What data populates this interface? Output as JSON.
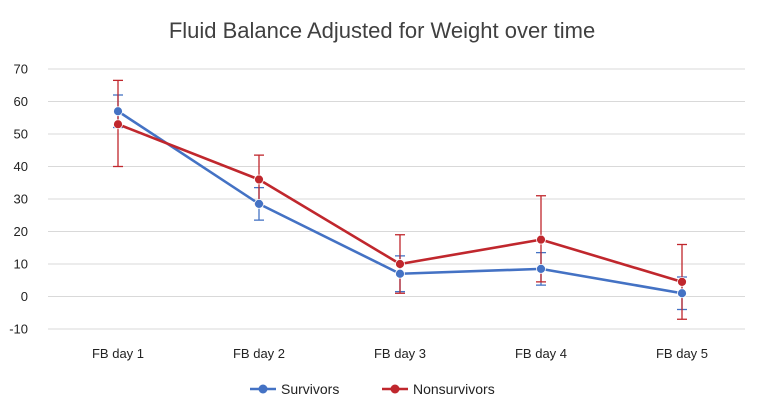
{
  "chart_data": {
    "type": "line",
    "title": "Fluid Balance Adjusted for Weight over time",
    "xlabel": "",
    "ylabel": "",
    "categories": [
      "FB day 1",
      "FB day 2",
      "FB day 3",
      "FB day 4",
      "FB day 5"
    ],
    "ylim": [
      -10,
      70
    ],
    "yticks": [
      -10,
      0,
      10,
      20,
      30,
      40,
      50,
      60,
      70
    ],
    "grid": true,
    "legend_position": "bottom",
    "series": [
      {
        "name": "Survivors",
        "color": "#4472C4",
        "values": [
          57,
          28.5,
          7,
          8.5,
          1
        ],
        "error_low": [
          52,
          23.5,
          1.5,
          3.5,
          -4
        ],
        "error_high": [
          62,
          33.5,
          12.5,
          13.5,
          6
        ]
      },
      {
        "name": "Nonsurvivors",
        "color": "#C0272D",
        "values": [
          53,
          36,
          10,
          17.5,
          4.5
        ],
        "error_low": [
          40,
          28.5,
          1,
          4.5,
          -7
        ],
        "error_high": [
          66.5,
          43.5,
          19,
          31,
          16
        ]
      }
    ]
  }
}
